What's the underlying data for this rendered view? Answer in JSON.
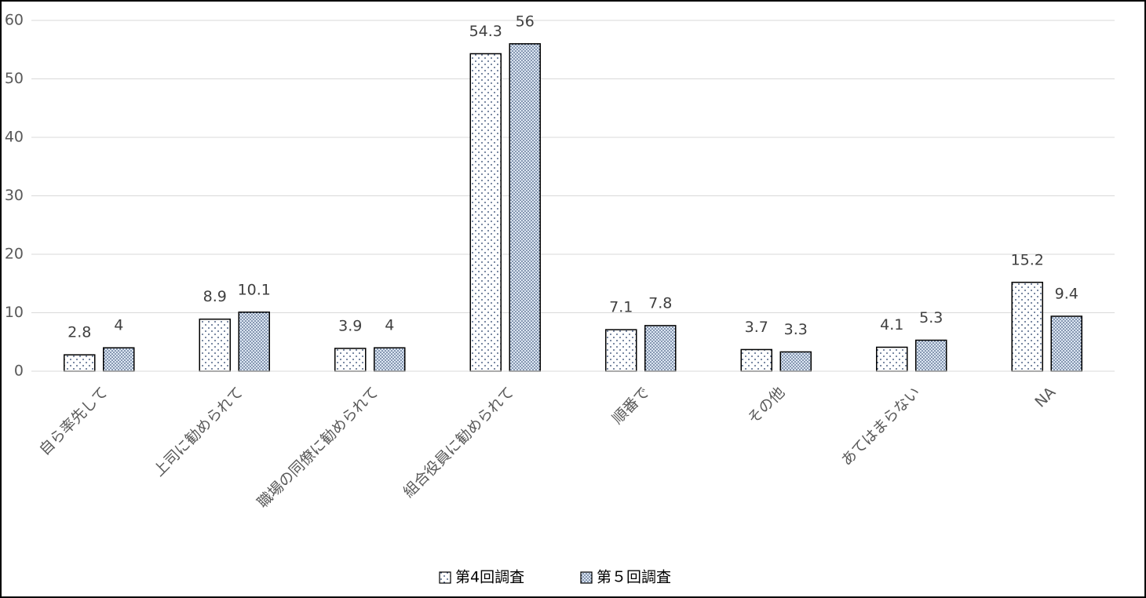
{
  "chart_data": {
    "type": "bar",
    "categories": [
      "自ら率先して",
      "上司に勧められて",
      "職場の同僚に勧められて",
      "組合役員に勧められて",
      "順番で",
      "その他",
      "あてはまらない",
      "NA"
    ],
    "series": [
      {
        "name": "第4回調査",
        "color": "#ffffff",
        "values": [
          2.8,
          8.9,
          3.9,
          54.3,
          7.1,
          3.7,
          4.1,
          15.2
        ]
      },
      {
        "name": "第５回調査",
        "color": "#dce6f2",
        "values": [
          4,
          10.1,
          4,
          56,
          7.8,
          3.3,
          5.3,
          9.4
        ]
      }
    ],
    "ylim": [
      0,
      60
    ],
    "yticks": [
      0,
      10,
      20,
      30,
      40,
      50,
      60
    ],
    "grid": true,
    "legend": "bottom"
  }
}
